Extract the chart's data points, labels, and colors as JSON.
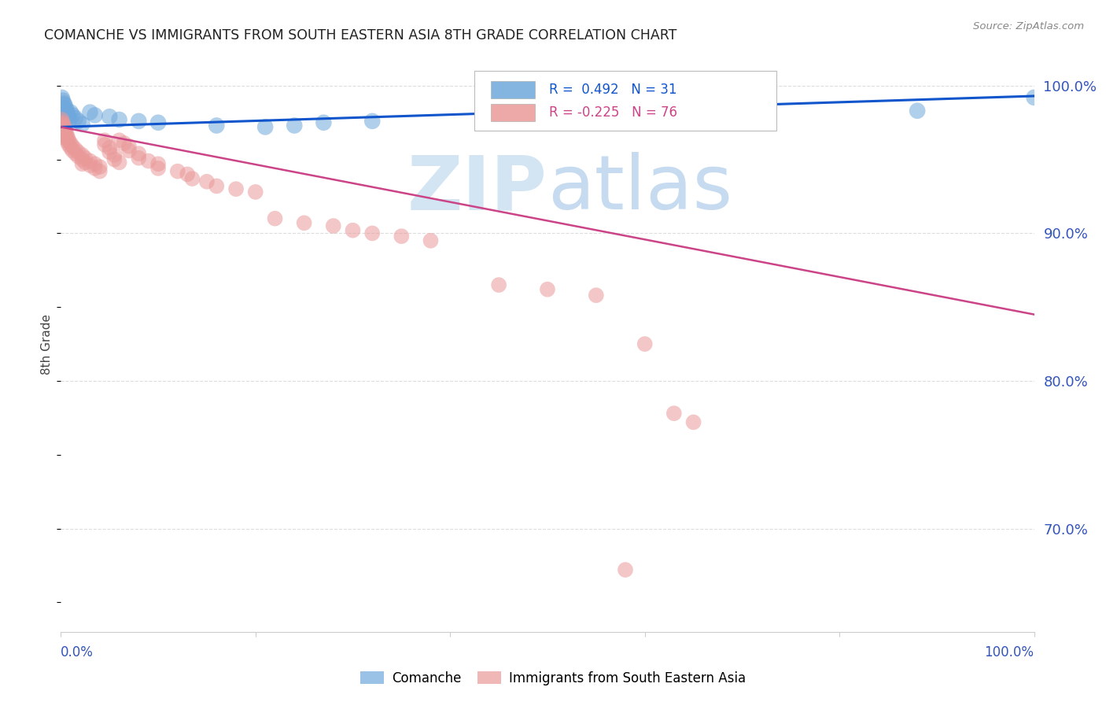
{
  "title": "COMANCHE VS IMMIGRANTS FROM SOUTH EASTERN ASIA 8TH GRADE CORRELATION CHART",
  "source": "Source: ZipAtlas.com",
  "ylabel": "8th Grade",
  "blue_r_text": "R =  0.492",
  "blue_n_text": "N = 31",
  "pink_r_text": "R = -0.225",
  "pink_n_text": "N = 76",
  "ytick_labels": [
    "100.0%",
    "90.0%",
    "80.0%",
    "70.0%"
  ],
  "ytick_positions": [
    1.0,
    0.9,
    0.8,
    0.7
  ],
  "blue_scatter": [
    [
      0.001,
      0.992
    ],
    [
      0.002,
      0.99
    ],
    [
      0.003,
      0.988
    ],
    [
      0.003,
      0.984
    ],
    [
      0.004,
      0.987
    ],
    [
      0.004,
      0.982
    ],
    [
      0.005,
      0.985
    ],
    [
      0.005,
      0.98
    ],
    [
      0.006,
      0.983
    ],
    [
      0.007,
      0.981
    ],
    [
      0.008,
      0.979
    ],
    [
      0.009,
      0.977
    ],
    [
      0.01,
      0.982
    ],
    [
      0.012,
      0.98
    ],
    [
      0.015,
      0.978
    ],
    [
      0.018,
      0.976
    ],
    [
      0.022,
      0.974
    ],
    [
      0.03,
      0.982
    ],
    [
      0.035,
      0.98
    ],
    [
      0.05,
      0.979
    ],
    [
      0.06,
      0.977
    ],
    [
      0.08,
      0.976
    ],
    [
      0.1,
      0.975
    ],
    [
      0.16,
      0.973
    ],
    [
      0.21,
      0.972
    ],
    [
      0.24,
      0.973
    ],
    [
      0.27,
      0.975
    ],
    [
      0.32,
      0.976
    ],
    [
      0.58,
      0.982
    ],
    [
      0.88,
      0.983
    ],
    [
      1.0,
      0.992
    ]
  ],
  "pink_scatter": [
    [
      0.001,
      0.977
    ],
    [
      0.001,
      0.974
    ],
    [
      0.001,
      0.972
    ],
    [
      0.002,
      0.975
    ],
    [
      0.002,
      0.971
    ],
    [
      0.002,
      0.969
    ],
    [
      0.003,
      0.973
    ],
    [
      0.003,
      0.97
    ],
    [
      0.003,
      0.967
    ],
    [
      0.004,
      0.971
    ],
    [
      0.004,
      0.968
    ],
    [
      0.004,
      0.965
    ],
    [
      0.005,
      0.969
    ],
    [
      0.005,
      0.966
    ],
    [
      0.006,
      0.967
    ],
    [
      0.006,
      0.964
    ],
    [
      0.007,
      0.965
    ],
    [
      0.007,
      0.962
    ],
    [
      0.008,
      0.963
    ],
    [
      0.008,
      0.96
    ],
    [
      0.01,
      0.961
    ],
    [
      0.01,
      0.958
    ],
    [
      0.012,
      0.959
    ],
    [
      0.012,
      0.956
    ],
    [
      0.015,
      0.957
    ],
    [
      0.015,
      0.954
    ],
    [
      0.018,
      0.955
    ],
    [
      0.018,
      0.952
    ],
    [
      0.022,
      0.953
    ],
    [
      0.022,
      0.95
    ],
    [
      0.022,
      0.947
    ],
    [
      0.025,
      0.951
    ],
    [
      0.025,
      0.948
    ],
    [
      0.03,
      0.949
    ],
    [
      0.03,
      0.946
    ],
    [
      0.035,
      0.947
    ],
    [
      0.035,
      0.944
    ],
    [
      0.04,
      0.945
    ],
    [
      0.04,
      0.942
    ],
    [
      0.045,
      0.963
    ],
    [
      0.045,
      0.96
    ],
    [
      0.05,
      0.958
    ],
    [
      0.05,
      0.955
    ],
    [
      0.055,
      0.953
    ],
    [
      0.055,
      0.95
    ],
    [
      0.06,
      0.948
    ],
    [
      0.06,
      0.963
    ],
    [
      0.065,
      0.961
    ],
    [
      0.07,
      0.959
    ],
    [
      0.07,
      0.956
    ],
    [
      0.08,
      0.954
    ],
    [
      0.08,
      0.951
    ],
    [
      0.09,
      0.949
    ],
    [
      0.1,
      0.947
    ],
    [
      0.1,
      0.944
    ],
    [
      0.12,
      0.942
    ],
    [
      0.13,
      0.94
    ],
    [
      0.135,
      0.937
    ],
    [
      0.15,
      0.935
    ],
    [
      0.16,
      0.932
    ],
    [
      0.18,
      0.93
    ],
    [
      0.2,
      0.928
    ],
    [
      0.22,
      0.91
    ],
    [
      0.25,
      0.907
    ],
    [
      0.28,
      0.905
    ],
    [
      0.3,
      0.902
    ],
    [
      0.32,
      0.9
    ],
    [
      0.35,
      0.898
    ],
    [
      0.38,
      0.895
    ],
    [
      0.45,
      0.865
    ],
    [
      0.5,
      0.862
    ],
    [
      0.55,
      0.858
    ],
    [
      0.6,
      0.825
    ],
    [
      0.63,
      0.778
    ],
    [
      0.65,
      0.772
    ],
    [
      0.58,
      0.672
    ]
  ],
  "blue_line_x": [
    0.0,
    1.0
  ],
  "blue_line_y": [
    0.972,
    0.993
  ],
  "pink_line_x": [
    0.0,
    1.0
  ],
  "pink_line_y": [
    0.972,
    0.845
  ],
  "blue_color": "#6fa8dc",
  "pink_color": "#ea9999",
  "blue_line_color": "#1155cc",
  "pink_line_color": "#cc4488",
  "bg_color": "#ffffff",
  "grid_color": "#dddddd",
  "title_color": "#222222",
  "source_color": "#888888",
  "ymin": 0.63,
  "ymax": 1.02,
  "xmin": 0.0,
  "xmax": 1.0
}
